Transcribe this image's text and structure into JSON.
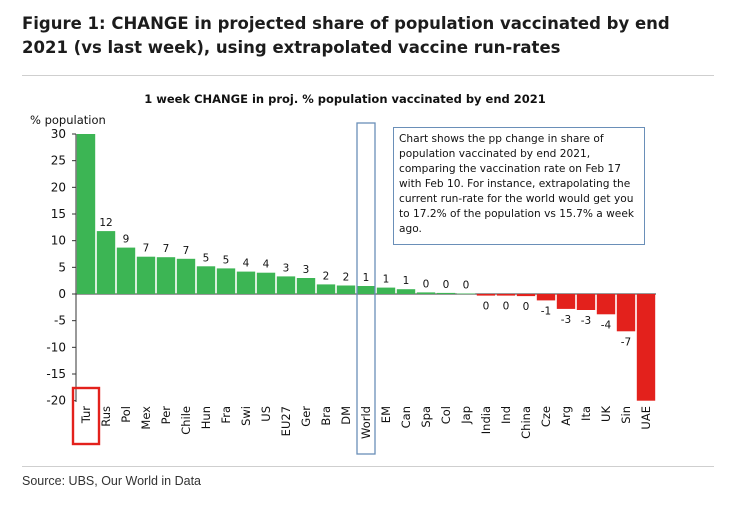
{
  "figure": {
    "title": "Figure 1: CHANGE in projected share of population vaccinated by end 2021 (vs last week), using extrapolated vaccine run-rates",
    "source": "Source:  UBS, Our World in Data"
  },
  "chart_data": {
    "type": "bar",
    "title": "1 week CHANGE in proj. % population vaccinated by end 2021",
    "ylabel": "% population",
    "xlabel": "",
    "ylim": [
      -20,
      30
    ],
    "yticks": [
      30,
      25,
      20,
      15,
      10,
      5,
      0,
      -5,
      -10,
      -15,
      -20
    ],
    "categories": [
      "Tur",
      "Rus",
      "Pol",
      "Mex",
      "Per",
      "Chile",
      "Hun",
      "Fra",
      "Swi",
      "US",
      "EU27",
      "Ger",
      "Bra",
      "DM",
      "World",
      "EM",
      "Can",
      "Spa",
      "Col",
      "Jap",
      "India",
      "Ind",
      "China",
      "Cze",
      "Arg",
      "Ita",
      "UK",
      "Sin",
      "UAE"
    ],
    "values": [
      31,
      11.8,
      8.7,
      7.0,
      6.9,
      6.6,
      5.2,
      4.8,
      4.2,
      4.0,
      3.3,
      3.0,
      1.8,
      1.6,
      1.5,
      1.2,
      0.9,
      0.3,
      0.2,
      0.1,
      -0.3,
      -0.3,
      -0.4,
      -1.2,
      -2.8,
      -3.0,
      -3.8,
      -7.0,
      -20.0
    ],
    "data_labels": [
      "",
      "12",
      "9",
      "7",
      "7",
      "7",
      "5",
      "5",
      "4",
      "4",
      "3",
      "3",
      "2",
      "2",
      "1",
      "1",
      "1",
      "0",
      "0",
      "0",
      "0",
      "0",
      "0",
      "-1",
      "-3",
      "-3",
      "-4",
      "-7",
      ""
    ],
    "colors": {
      "positive": "#3cb554",
      "negative": "#e3211c",
      "world_highlight": "#6a8fb8",
      "tur_highlight": "#e3211c"
    },
    "grid": false,
    "legend": "none",
    "highlighted_categories": [
      "Tur",
      "World"
    ],
    "annotation": "Chart shows the pp change in share of population vaccinated by end 2021, comparing the vaccination rate on Feb 17 with Feb 10. For instance, extrapolating the current run-rate for the world would get you to 17.2% of the population vs 15.7% a week ago."
  }
}
